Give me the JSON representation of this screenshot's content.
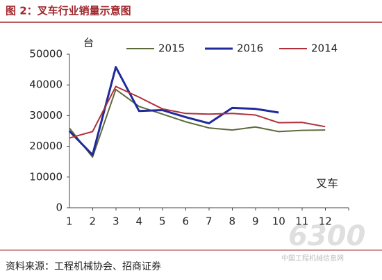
{
  "chart_data": {
    "type": "line",
    "title": "图 2：叉车行业销量示意图",
    "y_unit": "台",
    "annotation": "叉车",
    "source": "资料来源：工程机械协会、招商证券",
    "watermark": "6300",
    "watermark_site": "中国工程机械信息网",
    "categories": [
      "1",
      "2",
      "3",
      "4",
      "5",
      "6",
      "7",
      "8",
      "9",
      "10",
      "11",
      "12"
    ],
    "series": [
      {
        "name": "2015",
        "color": "#5d6b3c",
        "values": [
          26000,
          16500,
          38500,
          33000,
          30500,
          28000,
          26000,
          25300,
          26300,
          24800,
          25200,
          25300
        ]
      },
      {
        "name": "2016",
        "color": "#1f2a9c",
        "values": [
          25000,
          17200,
          45800,
          31500,
          31800,
          29500,
          27500,
          32500,
          32200,
          31000,
          null,
          null
        ]
      },
      {
        "name": "2014",
        "color": "#b0303a",
        "values": [
          22700,
          24800,
          39500,
          36000,
          32200,
          30700,
          30500,
          30700,
          30200,
          27700,
          27800,
          26400
        ]
      }
    ],
    "ylim": [
      0,
      50000
    ],
    "yticks": [
      0,
      10000,
      20000,
      30000,
      40000,
      50000
    ],
    "grid": false
  }
}
